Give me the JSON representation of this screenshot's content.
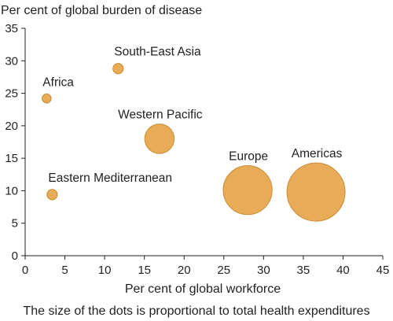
{
  "chart_data": {
    "type": "scatter",
    "title": "",
    "ylabel": "Per cent of global burden of disease",
    "xlabel": "Per cent of global workforce",
    "note": "The size of the dots is proportional to total health expenditures",
    "xlim": [
      0,
      45
    ],
    "ylim": [
      0,
      35
    ],
    "xticks": [
      0,
      5,
      10,
      15,
      20,
      25,
      30,
      35,
      40,
      45
    ],
    "yticks": [
      0,
      5,
      10,
      15,
      20,
      25,
      30,
      35
    ],
    "grid": false,
    "legend": "none",
    "bubble_color": "#e8ab57",
    "bubble_stroke": "#c98d35",
    "size_encoding": "total health expenditures (relative area)",
    "points": [
      {
        "label": "Africa",
        "x": 2.7,
        "y": 24.2,
        "size": 1.0
      },
      {
        "label": "South-East Asia",
        "x": 11.7,
        "y": 28.8,
        "size": 1.3
      },
      {
        "label": "Eastern Mediterranean",
        "x": 3.4,
        "y": 9.4,
        "size": 1.3
      },
      {
        "label": "Western Pacific",
        "x": 16.9,
        "y": 18.0,
        "size": 10.5
      },
      {
        "label": "Europe",
        "x": 28.0,
        "y": 10.1,
        "size": 29.0
      },
      {
        "label": "Americas",
        "x": 36.6,
        "y": 9.8,
        "size": 41.0
      }
    ]
  }
}
